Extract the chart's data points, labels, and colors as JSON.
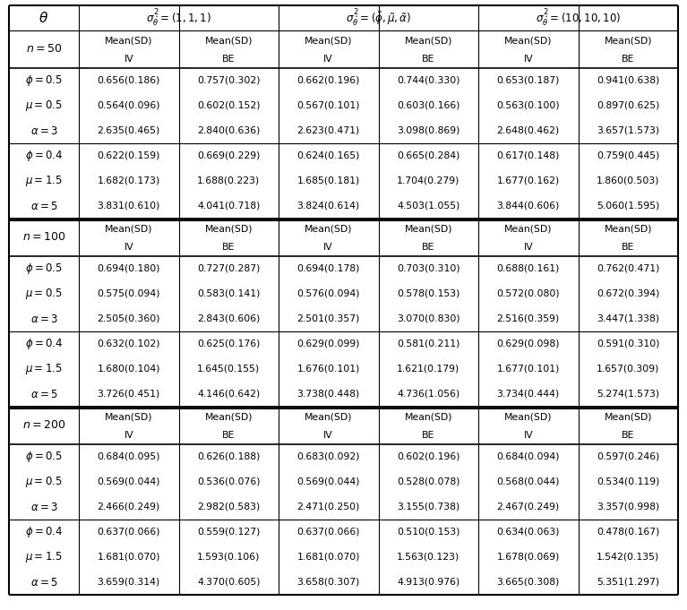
{
  "sections": [
    {
      "n": "50",
      "groups": [
        {
          "params": [
            "φ = 0.5",
            "μ = 0.5",
            "α = 3"
          ],
          "data": [
            [
              "0.656(0.186)",
              "0.757(0.302)",
              "0.662(0.196)",
              "0.744(0.330)",
              "0.653(0.187)",
              "0.941(0.638)"
            ],
            [
              "0.564(0.096)",
              "0.602(0.152)",
              "0.567(0.101)",
              "0.603(0.166)",
              "0.563(0.100)",
              "0.897(0.625)"
            ],
            [
              "2.635(0.465)",
              "2.840(0.636)",
              "2.623(0.471)",
              "3.098(0.869)",
              "2.648(0.462)",
              "3.657(1.573)"
            ]
          ]
        },
        {
          "params": [
            "φ = 0.4",
            "μ = 1.5",
            "α = 5"
          ],
          "data": [
            [
              "0.622(0.159)",
              "0.669(0.229)",
              "0.624(0.165)",
              "0.665(0.284)",
              "0.617(0.148)",
              "0.759(0.445)"
            ],
            [
              "1.682(0.173)",
              "1.688(0.223)",
              "1.685(0.181)",
              "1.704(0.279)",
              "1.677(0.162)",
              "1.860(0.503)"
            ],
            [
              "3.831(0.610)",
              "4.041(0.718)",
              "3.824(0.614)",
              "4.503(1.055)",
              "3.844(0.606)",
              "5.060(1.595)"
            ]
          ]
        }
      ]
    },
    {
      "n": "100",
      "groups": [
        {
          "params": [
            "φ = 0.5",
            "μ = 0.5",
            "α = 3"
          ],
          "data": [
            [
              "0.694(0.180)",
              "0.727(0.287)",
              "0.694(0.178)",
              "0.703(0.310)",
              "0.688(0.161)",
              "0.762(0.471)"
            ],
            [
              "0.575(0.094)",
              "0.583(0.141)",
              "0.576(0.094)",
              "0.578(0.153)",
              "0.572(0.080)",
              "0.672(0.394)"
            ],
            [
              "2.505(0.360)",
              "2.843(0.606)",
              "2.501(0.357)",
              "3.070(0.830)",
              "2.516(0.359)",
              "3.447(1.338)"
            ]
          ]
        },
        {
          "params": [
            "φ = 0.4",
            "μ = 1.5",
            "α = 5"
          ],
          "data": [
            [
              "0.632(0.102)",
              "0.625(0.176)",
              "0.629(0.099)",
              "0.581(0.211)",
              "0.629(0.098)",
              "0.591(0.310)"
            ],
            [
              "1.680(0.104)",
              "1.645(0.155)",
              "1.676(0.101)",
              "1.621(0.179)",
              "1.677(0.101)",
              "1.657(0.309)"
            ],
            [
              "3.726(0.451)",
              "4.146(0.642)",
              "3.738(0.448)",
              "4.736(1.056)",
              "3.734(0.444)",
              "5.274(1.573)"
            ]
          ]
        }
      ]
    },
    {
      "n": "200",
      "groups": [
        {
          "params": [
            "φ = 0.5",
            "μ = 0.5",
            "α = 3"
          ],
          "data": [
            [
              "0.684(0.095)",
              "0.626(0.188)",
              "0.683(0.092)",
              "0.602(0.196)",
              "0.684(0.094)",
              "0.597(0.246)"
            ],
            [
              "0.569(0.044)",
              "0.536(0.076)",
              "0.569(0.044)",
              "0.528(0.078)",
              "0.568(0.044)",
              "0.534(0.119)"
            ],
            [
              "2.466(0.249)",
              "2.982(0.583)",
              "2.471(0.250)",
              "3.155(0.738)",
              "2.467(0.249)",
              "3.357(0.998)"
            ]
          ]
        },
        {
          "params": [
            "φ = 0.4",
            "μ = 1.5",
            "α = 5"
          ],
          "data": [
            [
              "0.637(0.066)",
              "0.559(0.127)",
              "0.637(0.066)",
              "0.510(0.153)",
              "0.634(0.063)",
              "0.478(0.167)"
            ],
            [
              "1.681(0.070)",
              "1.593(0.106)",
              "1.681(0.070)",
              "1.563(0.123)",
              "1.678(0.069)",
              "1.542(0.135)"
            ],
            [
              "3.659(0.314)",
              "4.370(0.605)",
              "3.658(0.307)",
              "4.913(0.976)",
              "3.665(0.308)",
              "5.351(1.297)"
            ]
          ]
        }
      ]
    }
  ],
  "sigma_labels": [
    "$\\sigma^2_{\\hat{\\theta}} = (1, 1, 1)$",
    "$\\sigma^2_{\\hat{\\theta}} = (\\tilde{\\phi}, \\tilde{\\mu}, \\tilde{\\alpha})$",
    "$\\sigma^2_{\\hat{\\theta}} = (10, 10, 10)$"
  ]
}
